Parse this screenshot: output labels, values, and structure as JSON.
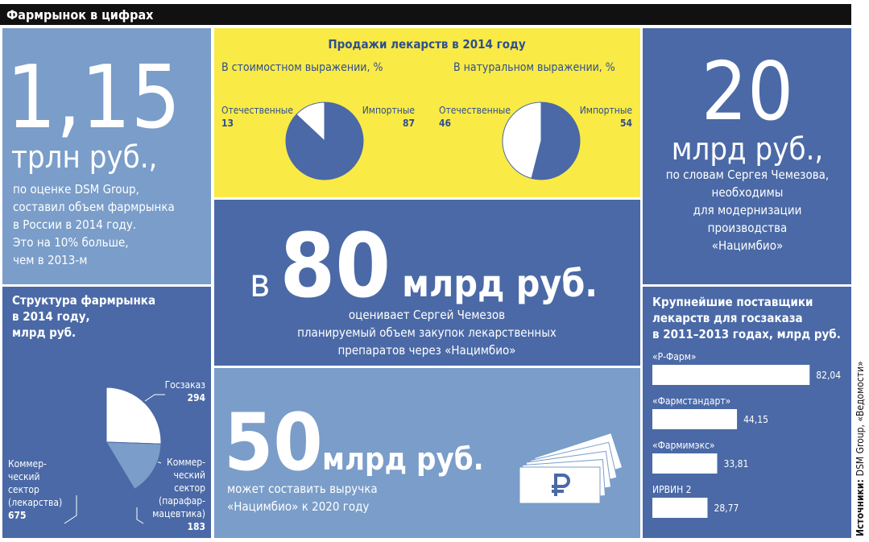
{
  "header": {
    "title": "Фармрынок в цифрах"
  },
  "market": {
    "big": "1,15",
    "unit": "трлн руб.,",
    "text": "по оценке DSM Group,\nсоставил объем фармрынка\nв России в 2014 году.\nЭто на 10% больше,\nчем в 2013-м"
  },
  "sales_title": "Продажи лекарств в 2014 году",
  "purchases": {
    "prefix": "в",
    "big": "80",
    "unit": "млрд руб.",
    "text": "оценивает Сергей Чемезов\nпланируемый объем закупок лекарственных\nпрепаратов через «Нацимбио»"
  },
  "revenue": {
    "big": "50",
    "unit": "млрд руб.",
    "text": "может составить выручка\n«Нацимбио» к 2020 году"
  },
  "modernization": {
    "big": "20",
    "unit": "млрд руб.,",
    "text": "по словам Сергея Чемезова,\nнеобходимы\nдля модернизации\nпроизводства\n«Нацимбио»"
  },
  "source": {
    "label": "Источники:",
    "text": "DSM Group, «Ведомости»"
  },
  "chart_data": [
    {
      "type": "pie",
      "title": "В стоимостном выражении, %",
      "categories": [
        "Отечественные",
        "Импортные"
      ],
      "values": [
        13,
        87
      ],
      "colors": [
        "#ffffff",
        "#4a69a6"
      ]
    },
    {
      "type": "pie",
      "title": "В натуральном выражении, %",
      "categories": [
        "Отечественные",
        "Импортные"
      ],
      "values": [
        46,
        54
      ],
      "colors": [
        "#ffffff",
        "#4a69a6"
      ]
    },
    {
      "type": "pie",
      "title": "Структура фармрынка\nв 2014 году,\nмлрд руб.",
      "categories": [
        "Госзаказ",
        "Коммер-\nческий\nсектор\n(парафар-\nмацевтика)",
        "Коммер-\nческий\nсектор\n(лекарства)"
      ],
      "values": [
        294,
        183,
        675
      ],
      "colors": [
        "#ffffff",
        "#7a9dc9",
        "#4a69a6"
      ]
    },
    {
      "type": "bar",
      "title": "Крупнейшие поставщики\nлекарств для госзаказа\nв 2011–2013 годах, млрд руб.",
      "categories": [
        "«Р-Фарм»",
        "«Фармстандарт»",
        "«Фармимэкс»",
        "ИРВИН 2"
      ],
      "values": [
        82.04,
        44.15,
        33.81,
        28.77
      ],
      "value_labels": [
        "82,04",
        "44,15",
        "33,81",
        "28,77"
      ],
      "color": "#ffffff"
    }
  ]
}
